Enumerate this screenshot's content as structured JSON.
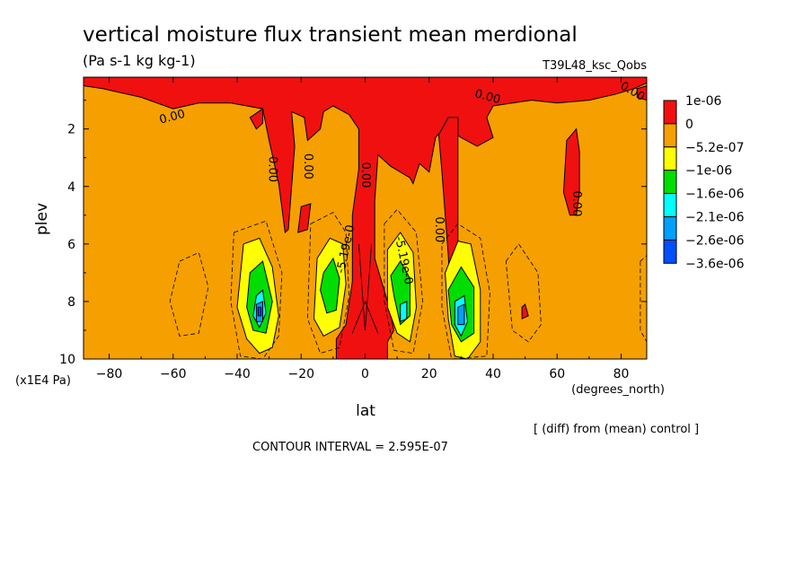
{
  "chart_data": {
    "type": "heatmap",
    "title": "vertical moisture flux transient mean merdional",
    "subtitle": "(Pa s-1 kg kg-1)",
    "experiment": "T39L48_ksc_Qobs",
    "xlabel": "lat",
    "xunits": "(degrees_north)",
    "ylabel": "plev",
    "yunits": "(x1E4 Pa)",
    "xlim": [
      -88,
      88
    ],
    "ylim": [
      10,
      0.2
    ],
    "x_ticks": [
      -80,
      -60,
      -40,
      -20,
      0,
      20,
      40,
      60,
      80
    ],
    "y_ticks": [
      2,
      4,
      6,
      8,
      10
    ],
    "contour_interval_text": "CONTOUR INTERVAL = 2.595E-07",
    "note": "[ (diff) from (mean) control ]",
    "colorbar": {
      "labels": [
        "1e-06",
        "0",
        "-5.2e-07",
        "-1e-06",
        "-1.6e-06",
        "-2.1e-06",
        "-2.6e-06",
        "-3.6e-06"
      ],
      "colors": [
        "#f01010",
        "#f5a000",
        "#ffff00",
        "#00dd00",
        "#00ffff",
        "#00a0ff",
        "#0050ff"
      ]
    },
    "background_color": "#f5a000",
    "contour_labels": [
      {
        "text": "0.00",
        "lat": -60,
        "plev": 1.7,
        "angle": -15
      },
      {
        "text": "0.00",
        "lat": -30,
        "plev": 3.4,
        "angle": 90
      },
      {
        "text": "0.00",
        "lat": -19,
        "plev": 3.3,
        "angle": 90
      },
      {
        "text": "0.00",
        "lat": -1,
        "plev": 3.6,
        "angle": 90
      },
      {
        "text": "-5.19e-0",
        "lat": -5,
        "plev": 6.2,
        "angle": -78
      },
      {
        "text": "-5.19e-0",
        "lat": 11,
        "plev": 6.6,
        "angle": 78
      },
      {
        "text": "0.00",
        "lat": 22,
        "plev": 5.5,
        "angle": 90
      },
      {
        "text": "0.00",
        "lat": 38,
        "plev": 1.0,
        "angle": 15
      },
      {
        "text": "0.00",
        "lat": 65,
        "plev": 4.6,
        "angle": 90
      },
      {
        "text": "0.00",
        "lat": 83,
        "plev": 0.8,
        "angle": 30
      }
    ],
    "regions": [
      {
        "name": "positive",
        "level": 0,
        "paths": [
          [
            [
              -88,
              0.2
            ],
            [
              88,
              0.2
            ],
            [
              88,
              0.4
            ],
            [
              84,
              0.6
            ],
            [
              78,
              0.8
            ],
            [
              70,
              1.0
            ],
            [
              60,
              1.1
            ],
            [
              52,
              1.0
            ],
            [
              46,
              1.1
            ],
            [
              40,
              1.2
            ],
            [
              38,
              1.6
            ],
            [
              40,
              2.3
            ],
            [
              35,
              2.6
            ],
            [
              30,
              2.3
            ],
            [
              25,
              1.9
            ],
            [
              22,
              2.3
            ],
            [
              20,
              3.5
            ],
            [
              17,
              3.2
            ],
            [
              15,
              3.9
            ],
            [
              14,
              3.7
            ],
            [
              8,
              3.3
            ],
            [
              4,
              2.9
            ],
            [
              3,
              4.5
            ],
            [
              3,
              6.5
            ],
            [
              7,
              8.0
            ],
            [
              9,
              9.0
            ],
            [
              7,
              9.4
            ],
            [
              7,
              10.0
            ],
            [
              -9,
              10.0
            ],
            [
              -9,
              9.3
            ],
            [
              -6,
              8.8
            ],
            [
              -4,
              7.3
            ],
            [
              -4,
              5.0
            ],
            [
              -2,
              3.4
            ],
            [
              -2,
              2.0
            ],
            [
              -5,
              1.5
            ],
            [
              -10,
              1.2
            ],
            [
              -13,
              1.4
            ],
            [
              -14,
              2.0
            ],
            [
              -18,
              2.4
            ],
            [
              -19,
              1.6
            ],
            [
              -23,
              1.4
            ],
            [
              -22,
              2.6
            ],
            [
              -24,
              5.5
            ],
            [
              -25,
              5.6
            ],
            [
              -27,
              3.9
            ],
            [
              -30,
              2.4
            ],
            [
              -32,
              1.3
            ],
            [
              -42,
              1.1
            ],
            [
              -52,
              1.1
            ],
            [
              -60,
              1.3
            ],
            [
              -70,
              0.9
            ],
            [
              -82,
              0.6
            ],
            [
              -88,
              0.5
            ]
          ],
          [
            [
              29,
              1.6
            ],
            [
              29,
              6.8
            ],
            [
              30,
              8.6
            ],
            [
              27,
              8.6
            ],
            [
              26,
              6.4
            ],
            [
              24,
              3.5
            ],
            [
              23,
              2.2
            ],
            [
              26,
              1.6
            ]
          ],
          [
            [
              -32,
              1.3
            ],
            [
              -36,
              1.6
            ],
            [
              -34,
              2.0
            ],
            [
              -32,
              1.8
            ]
          ],
          [
            [
              63,
              2.4
            ],
            [
              66,
              2.0
            ],
            [
              67,
              2.8
            ],
            [
              67,
              4.2
            ],
            [
              66,
              5.0
            ],
            [
              64,
              5.0
            ],
            [
              62,
              4.2
            ]
          ],
          [
            [
              -20,
              4.7
            ],
            [
              -17,
              4.6
            ],
            [
              -18,
              5.5
            ],
            [
              -21,
              5.6
            ]
          ],
          [
            [
              49,
              8.2
            ],
            [
              50,
              8.1
            ],
            [
              51,
              8.5
            ],
            [
              49,
              8.6
            ]
          ],
          [
            [
              85,
              0.6
            ],
            [
              88,
              0.5
            ],
            [
              88,
              1.0
            ],
            [
              85,
              0.9
            ]
          ]
        ]
      },
      {
        "name": "negative-1",
        "level": -5.2e-07,
        "paths": [
          [
            [
              -38,
              6.0
            ],
            [
              -33,
              5.8
            ],
            [
              -29,
              6.8
            ],
            [
              -27,
              8.5
            ],
            [
              -29,
              9.6
            ],
            [
              -33,
              9.8
            ],
            [
              -37,
              9.3
            ],
            [
              -40,
              8.2
            ]
          ],
          [
            [
              -15,
              6.5
            ],
            [
              -11,
              5.8
            ],
            [
              -7,
              6.0
            ],
            [
              -6,
              7.4
            ],
            [
              -8,
              8.9
            ],
            [
              -13,
              9.2
            ],
            [
              -16,
              8.6
            ]
          ],
          [
            [
              7,
              6.2
            ],
            [
              11,
              5.6
            ],
            [
              15,
              6.3
            ],
            [
              16,
              8.2
            ],
            [
              14,
              9.4
            ],
            [
              10,
              9.1
            ],
            [
              7,
              8.2
            ]
          ],
          [
            [
              25,
              7.0
            ],
            [
              29,
              5.9
            ],
            [
              33,
              6.0
            ],
            [
              36,
              7.6
            ],
            [
              36,
              9.4
            ],
            [
              32,
              10.0
            ],
            [
              28,
              9.9
            ],
            [
              26,
              8.6
            ]
          ]
        ]
      },
      {
        "name": "negative-2",
        "level": -1e-06,
        "paths": [
          [
            [
              -36,
              7.0
            ],
            [
              -32,
              6.6
            ],
            [
              -29,
              8.0
            ],
            [
              -31,
              9.1
            ],
            [
              -35,
              9.0
            ],
            [
              -37,
              8.2
            ]
          ],
          [
            [
              -13,
              7.0
            ],
            [
              -10,
              6.5
            ],
            [
              -8,
              7.2
            ],
            [
              -9,
              8.3
            ],
            [
              -12,
              8.4
            ],
            [
              -14,
              7.6
            ]
          ],
          [
            [
              8,
              7.1
            ],
            [
              11,
              6.6
            ],
            [
              14,
              7.2
            ],
            [
              14,
              8.5
            ],
            [
              11,
              8.8
            ],
            [
              9,
              7.8
            ]
          ],
          [
            [
              26,
              7.6
            ],
            [
              30,
              6.8
            ],
            [
              34,
              7.5
            ],
            [
              34,
              9.1
            ],
            [
              30,
              9.4
            ],
            [
              27,
              8.8
            ]
          ]
        ]
      },
      {
        "name": "negative-3",
        "level": -1.6e-06,
        "paths": [
          [
            [
              -34,
              7.8
            ],
            [
              -32,
              7.6
            ],
            [
              -31,
              8.4
            ],
            [
              -33,
              8.9
            ],
            [
              -35,
              8.5
            ]
          ],
          [
            [
              11,
              8.1
            ],
            [
              13,
              8.0
            ],
            [
              13,
              8.6
            ],
            [
              11,
              8.7
            ]
          ],
          [
            [
              28,
              8.0
            ],
            [
              31,
              7.8
            ],
            [
              32,
              8.7
            ],
            [
              30,
              9.2
            ],
            [
              28,
              8.8
            ]
          ]
        ]
      },
      {
        "name": "negative-4",
        "level": -2.1e-06,
        "paths": [
          [
            [
              -34,
              8.1
            ],
            [
              -32,
              8.0
            ],
            [
              -32,
              8.7
            ],
            [
              -34,
              8.7
            ]
          ],
          [
            [
              29,
              8.2
            ],
            [
              31,
              8.1
            ],
            [
              31,
              8.8
            ],
            [
              29,
              8.8
            ]
          ]
        ]
      },
      {
        "name": "negative-5",
        "level": -2.6e-06,
        "paths": [
          [
            [
              -33.5,
              8.2
            ],
            [
              -32.5,
              8.2
            ],
            [
              -32.5,
              8.5
            ],
            [
              -33.5,
              8.5
            ]
          ]
        ]
      }
    ],
    "dashed_contours": [
      [
        [
          -58,
          6.6
        ],
        [
          -52,
          6.3
        ],
        [
          -49,
          7.5
        ],
        [
          -52,
          9.1
        ],
        [
          -58,
          9.2
        ],
        [
          -61,
          8.0
        ]
      ],
      [
        [
          -41,
          5.6
        ],
        [
          -31,
          5.2
        ],
        [
          -26,
          7.0
        ],
        [
          -27,
          9.2
        ],
        [
          -32,
          10.0
        ],
        [
          -39,
          9.9
        ],
        [
          -42,
          8.0
        ]
      ],
      [
        [
          -17,
          5.3
        ],
        [
          -10,
          4.9
        ],
        [
          -6,
          5.6
        ],
        [
          -5,
          7.8
        ],
        [
          -8,
          9.6
        ],
        [
          -14,
          9.8
        ],
        [
          -18,
          8.6
        ]
      ],
      [
        [
          6,
          5.3
        ],
        [
          10,
          4.8
        ],
        [
          16,
          5.6
        ],
        [
          18,
          8.0
        ],
        [
          15,
          9.8
        ],
        [
          9,
          9.7
        ],
        [
          6,
          8.0
        ]
      ],
      [
        [
          24,
          6.0
        ],
        [
          29,
          5.3
        ],
        [
          36,
          5.8
        ],
        [
          39,
          7.7
        ],
        [
          38,
          9.9
        ],
        [
          27,
          10.0
        ],
        [
          24,
          8.2
        ]
      ],
      [
        [
          44,
          6.6
        ],
        [
          48,
          6.0
        ],
        [
          54,
          7.0
        ],
        [
          55,
          8.8
        ],
        [
          51,
          9.4
        ],
        [
          46,
          9.0
        ]
      ],
      [
        [
          86,
          6.6
        ],
        [
          88,
          6.4
        ],
        [
          88,
          9.4
        ],
        [
          86,
          9.0
        ]
      ]
    ],
    "solid_contours": [
      [
        [
          -2,
          6.0
        ],
        [
          0,
          9.0
        ],
        [
          2,
          6.0
        ]
      ],
      [
        [
          -4,
          9.1
        ],
        [
          0,
          8.0
        ],
        [
          4,
          9.1
        ]
      ]
    ]
  }
}
